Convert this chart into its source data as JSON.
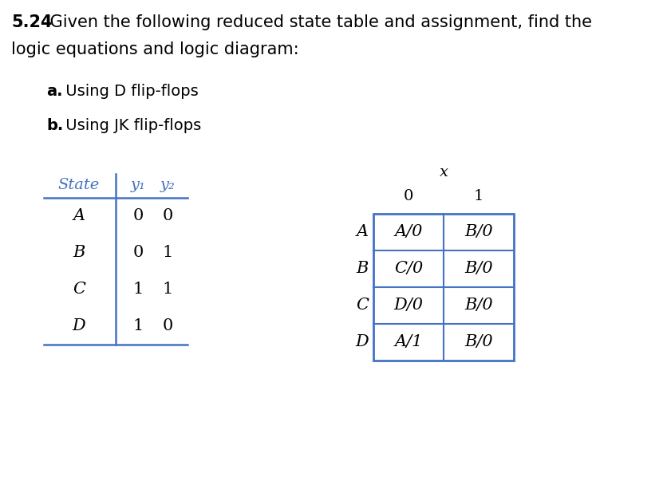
{
  "title_bold": "5.24",
  "title_rest": " Given the following reduced state table and assignment, find the",
  "title_line2": "logic equations and logic diagram:",
  "item_a_bold": "a.",
  "item_a_rest": " Using D flip-flops",
  "item_b_bold": "b.",
  "item_b_rest": " Using JK flip-flops",
  "left_table": {
    "header_state": "State",
    "header_y1": "y₁",
    "header_y2": "y₂",
    "rows": [
      [
        "A",
        "0",
        "0"
      ],
      [
        "B",
        "0",
        "1"
      ],
      [
        "C",
        "1",
        "1"
      ],
      [
        "D",
        "1",
        "0"
      ]
    ]
  },
  "right_table": {
    "x_label": "x",
    "col_headers": [
      "0",
      "1"
    ],
    "row_headers": [
      "A",
      "B",
      "C",
      "D"
    ],
    "cells": [
      [
        "A/0",
        "B/0"
      ],
      [
        "C/0",
        "B/0"
      ],
      [
        "D/0",
        "B/0"
      ],
      [
        "A/1",
        "B/0"
      ]
    ]
  },
  "table_color": "#4472C4",
  "bg_color": "#ffffff",
  "text_color": "#000000",
  "fs_title": 15,
  "fs_body": 14,
  "fs_table": 14
}
